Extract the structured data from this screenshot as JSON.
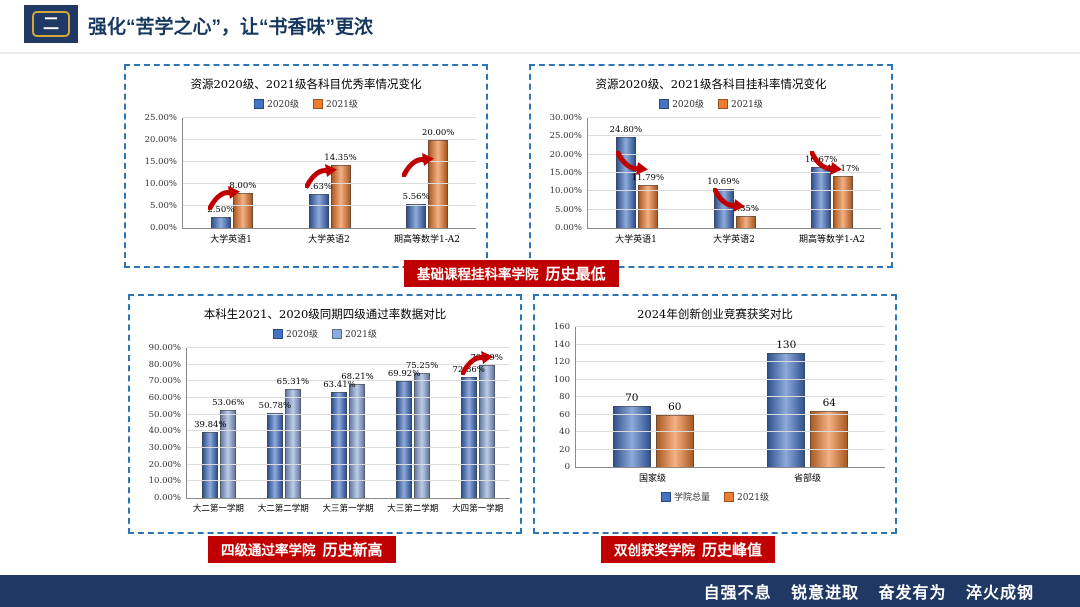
{
  "header": {
    "section_number": "二",
    "title": "强化“苦学之心”，让“书香味”更浓"
  },
  "footer": {
    "motto": "自强不息 锐意进取 奋发有为 淬火成钢"
  },
  "badges": [
    {
      "prefix": "基础课程挂科率学院",
      "highlight": "历史最低"
    },
    {
      "prefix": "四级通过率学院",
      "highlight": "历史新高"
    },
    {
      "prefix": "双创获奖学院",
      "highlight": "历史峰值"
    }
  ],
  "colors": {
    "navy": "#1F3864",
    "badge_red": "#C00000",
    "series_blue": "#4472C4",
    "series_orange": "#ED7D31",
    "series_light_blue": "#8FAADC",
    "panel_border": "#2E75B6"
  },
  "chart_data": [
    {
      "type": "bar",
      "title": "资源2020级、2021级各科目优秀率情况变化",
      "categories": [
        "大学英语1",
        "大学英语2",
        "期高等数学1-A2"
      ],
      "series": [
        {
          "name": "2020级",
          "color": "#4472C4",
          "values": [
            2.5,
            7.63,
            5.56
          ],
          "labels": [
            "2.50%",
            "7.63%",
            "5.56%"
          ]
        },
        {
          "name": "2021级",
          "color": "#ED7D31",
          "values": [
            8.0,
            14.35,
            20.0
          ],
          "labels": [
            "8.00%",
            "14.35%",
            "20.00%"
          ]
        }
      ],
      "ylim": [
        0,
        25
      ],
      "yticks": [
        "0.00%",
        "5.00%",
        "10.00%",
        "15.00%",
        "20.00%",
        "25.00%"
      ],
      "grid": true,
      "legend_position": "top",
      "arrows": [
        {
          "left": 10,
          "bottom": 16,
          "dir": "up"
        },
        {
          "left": 43,
          "bottom": 36,
          "dir": "up"
        },
        {
          "left": 76,
          "bottom": 46,
          "dir": "up"
        }
      ]
    },
    {
      "type": "bar",
      "title": "资源2020级、2021级各科目挂科率情况变化",
      "categories": [
        "大学英语1",
        "大学英语2",
        "期高等数学1-A2"
      ],
      "series": [
        {
          "name": "2020级",
          "color": "#4472C4",
          "values": [
            24.8,
            10.69,
            16.67
          ],
          "labels": [
            "24.80%",
            "10.69%",
            "16.67%"
          ]
        },
        {
          "name": "2021级",
          "color": "#ED7D31",
          "values": [
            11.79,
            3.35,
            14.17
          ],
          "labels": [
            "11.79%",
            "3.35%",
            "14.17%"
          ]
        }
      ],
      "ylim": [
        0,
        30
      ],
      "yticks": [
        "0.00%",
        "5.00%",
        "10.00%",
        "15.00%",
        "20.00%",
        "25.00%",
        "30.00%"
      ],
      "grid": true,
      "legend_position": "top",
      "arrows": [
        {
          "left": 11,
          "bottom": 48,
          "dir": "down"
        },
        {
          "left": 44,
          "bottom": 15,
          "dir": "down"
        },
        {
          "left": 77,
          "bottom": 48,
          "dir": "down"
        }
      ]
    },
    {
      "type": "bar",
      "title": "本科生2021、2020级同期四级通过率数据对比",
      "categories": [
        "大二第一学期",
        "大二第二学期",
        "大三第一学期",
        "大三第二学期",
        "大四第一学期"
      ],
      "series": [
        {
          "name": "2020级",
          "color": "#4472C4",
          "values": [
            39.84,
            50.78,
            63.41,
            69.92,
            72.86
          ],
          "labels": [
            "39.84%",
            "50.78%",
            "63.41%",
            "69.92%",
            "72.86%"
          ]
        },
        {
          "name": "2021级",
          "color": "#8FAADC",
          "values": [
            53.06,
            65.31,
            68.21,
            75.25,
            79.59
          ],
          "labels": [
            "53.06%",
            "65.31%",
            "68.21%",
            "75.25%",
            "79.59%"
          ]
        }
      ],
      "ylim": [
        0,
        90
      ],
      "yticks": [
        "0.00%",
        "10.00%",
        "20.00%",
        "30.00%",
        "40.00%",
        "50.00%",
        "60.00%",
        "70.00%",
        "80.00%",
        "90.00%"
      ],
      "grid": true,
      "legend_position": "top",
      "arrows": [
        {
          "left": 86,
          "bottom": 82,
          "dir": "up"
        }
      ]
    },
    {
      "type": "bar",
      "title": "2024年创新创业竞赛获奖对比",
      "categories": [
        "国家级",
        "省部级"
      ],
      "series": [
        {
          "name": "学院总量",
          "color": "#4472C4",
          "values": [
            70,
            130
          ],
          "labels": [
            "70",
            "130"
          ]
        },
        {
          "name": "2021级",
          "color": "#ED7D31",
          "values": [
            60,
            64
          ],
          "labels": [
            "60",
            "64"
          ]
        }
      ],
      "ylim": [
        0,
        160
      ],
      "yticks": [
        "0",
        "20",
        "40",
        "60",
        "80",
        "100",
        "120",
        "140",
        "160"
      ],
      "grid": true,
      "legend_position": "bottom",
      "arrows": []
    }
  ]
}
